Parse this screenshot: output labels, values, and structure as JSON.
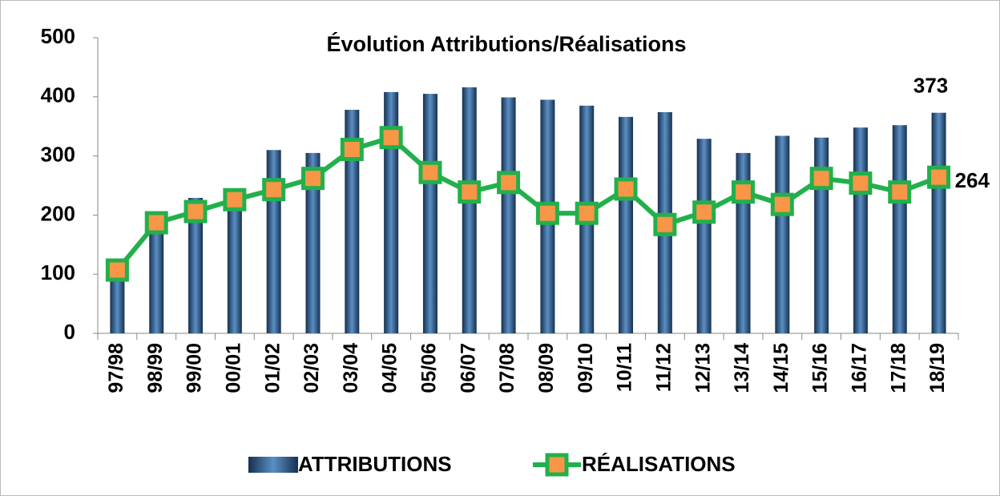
{
  "chart_data": {
    "type": "bar",
    "title": "Évolution Attributions/Réalisations",
    "categories": [
      "97/98",
      "98/99",
      "99/00",
      "00/01",
      "01/02",
      "02/03",
      "03/04",
      "04/05",
      "05/06",
      "06/07",
      "07/08",
      "08/09",
      "09/10",
      "10/11",
      "11/12",
      "12/13",
      "13/14",
      "14/15",
      "15/16",
      "16/17",
      "17/18",
      "18/19"
    ],
    "series": [
      {
        "name": "ATTRIBUTIONS",
        "color": "#3d6a98",
        "values": [
          110,
          190,
          229,
          225,
          310,
          305,
          378,
          408,
          405,
          416,
          399,
          395,
          385,
          366,
          374,
          329,
          305,
          334,
          331,
          348,
          352,
          373
        ]
      },
      {
        "name": "RÉALISATIONS",
        "type": "line",
        "color": "#22b04b",
        "marker_color": "#f79646",
        "values": [
          107,
          187,
          206,
          226,
          243,
          262,
          311,
          331,
          272,
          239,
          255,
          203,
          203,
          244,
          184,
          205,
          239,
          218,
          262,
          254,
          239,
          264
        ]
      }
    ],
    "ylim": [
      0,
      500
    ],
    "yticks": [
      0,
      100,
      200,
      300,
      400,
      500
    ],
    "grid": false,
    "legend": "bottom"
  }
}
